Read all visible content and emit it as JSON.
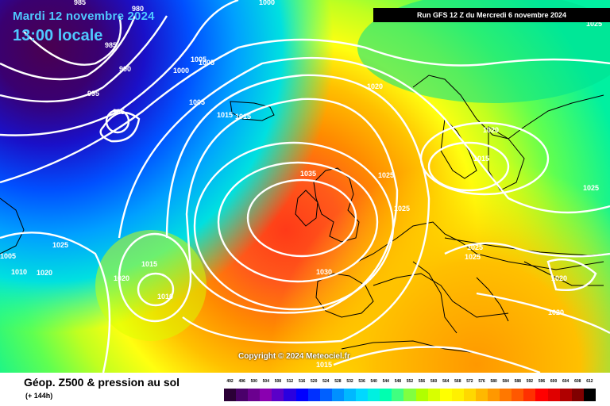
{
  "header": {
    "date": "Mardi 12 novembre 2024",
    "time": "13:00 locale",
    "run": "Run GFS 12 Z du Mercredi 6 novembre 2024"
  },
  "copyright": "Copyright © 2024 Meteociel.fr",
  "footer": {
    "title": "Géop. Z500 & pression au sol",
    "subtitle": "(+ 144h)"
  },
  "legend": {
    "values": [
      "492",
      "496",
      "500",
      "504",
      "508",
      "512",
      "516",
      "520",
      "524",
      "528",
      "532",
      "536",
      "540",
      "544",
      "548",
      "552",
      "556",
      "560",
      "564",
      "568",
      "572",
      "576",
      "580",
      "584",
      "588",
      "592",
      "596",
      "600",
      "604",
      "608",
      "612"
    ],
    "colors": [
      "#2b0036",
      "#4a006a",
      "#6b008f",
      "#8a00b0",
      "#5a00c8",
      "#2a00e0",
      "#0000ff",
      "#0030ff",
      "#0060ff",
      "#0090ff",
      "#00b8ff",
      "#00d8ff",
      "#00f0e0",
      "#00ffb0",
      "#40ff80",
      "#80ff40",
      "#b0ff00",
      "#d8ff00",
      "#ffff00",
      "#fff000",
      "#ffd800",
      "#ffb800",
      "#ff9800",
      "#ff7800",
      "#ff5800",
      "#ff3000",
      "#ff0000",
      "#e00000",
      "#b00000",
      "#800000",
      "#000000"
    ]
  },
  "isobars": [
    {
      "label": "985"
    },
    {
      "label": "980"
    },
    {
      "label": "1000"
    },
    {
      "label": "990"
    },
    {
      "label": "985"
    },
    {
      "label": "995"
    },
    {
      "label": "985"
    },
    {
      "label": "1005"
    },
    {
      "label": "1005"
    },
    {
      "label": "1000"
    },
    {
      "label": "1005"
    },
    {
      "label": "1015"
    },
    {
      "label": "1015"
    },
    {
      "label": "1020"
    },
    {
      "label": "1035"
    },
    {
      "label": "1025"
    },
    {
      "label": "1020"
    },
    {
      "label": "1015"
    },
    {
      "label": "1025"
    },
    {
      "label": "1025"
    },
    {
      "label": "1025"
    },
    {
      "label": "1025"
    },
    {
      "label": "1020"
    },
    {
      "label": "1020"
    },
    {
      "label": "1030"
    },
    {
      "label": "1015"
    },
    {
      "label": "1020"
    },
    {
      "label": "1010"
    },
    {
      "label": "1025"
    },
    {
      "label": "1010"
    },
    {
      "label": "1020"
    },
    {
      "label": "1005"
    },
    {
      "label": "1025"
    },
    {
      "label": "1015"
    }
  ]
}
